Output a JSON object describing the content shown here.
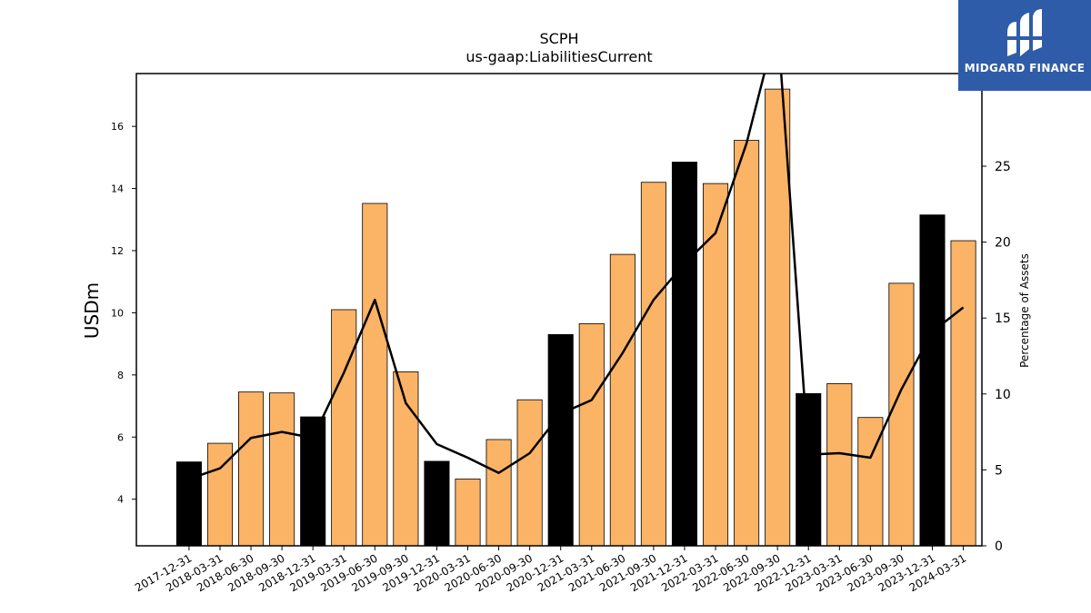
{
  "chart_data": {
    "type": "bar+line",
    "title": "SCPH",
    "subtitle": "us-gaap:LiabilitiesCurrent",
    "ylabel": "USDm",
    "y2label": "Percentage of Assets",
    "ylim": [
      2.5,
      17.7
    ],
    "y2lim": [
      0,
      31.1
    ],
    "yticks": [
      4,
      6,
      8,
      10,
      12,
      14,
      16
    ],
    "y2ticks": [
      0,
      5,
      10,
      15,
      20,
      25
    ],
    "categories": [
      "2017-12-31",
      "2018-03-31",
      "2018-06-30",
      "2018-09-30",
      "2018-12-31",
      "2019-03-31",
      "2019-06-30",
      "2019-09-30",
      "2019-12-31",
      "2020-03-31",
      "2020-06-30",
      "2020-09-30",
      "2020-12-31",
      "2021-03-31",
      "2021-06-30",
      "2021-09-30",
      "2021-12-31",
      "2022-03-31",
      "2022-06-30",
      "2022-09-30",
      "2022-12-31",
      "2023-03-31",
      "2023-06-30",
      "2023-09-30",
      "2023-12-31",
      "2024-03-31"
    ],
    "bars": [
      5.2,
      5.8,
      7.45,
      7.42,
      6.65,
      10.1,
      13.52,
      8.1,
      5.22,
      4.65,
      5.92,
      7.2,
      9.3,
      9.65,
      11.88,
      14.2,
      14.85,
      14.16,
      15.55,
      17.2,
      7.4,
      7.72,
      6.63,
      10.95,
      13.15,
      12.32
    ],
    "bar_highlight": [
      true,
      false,
      false,
      false,
      true,
      false,
      false,
      false,
      true,
      false,
      false,
      false,
      true,
      false,
      false,
      false,
      true,
      false,
      false,
      false,
      true,
      false,
      false,
      false,
      true,
      false
    ],
    "line_percentage": [
      4.4,
      5.1,
      7.1,
      7.5,
      7.1,
      11.4,
      16.2,
      9.4,
      6.7,
      5.8,
      4.8,
      6.1,
      8.7,
      9.6,
      12.7,
      16.2,
      18.6,
      20.6,
      26.5,
      34.5,
      6.0,
      6.1,
      5.8,
      10.3,
      14.1,
      15.7
    ],
    "colors": {
      "bar": "#fbb366",
      "bar_highlight": "#000000",
      "line": "#000000",
      "bar_edge": "#000000"
    }
  },
  "logo": {
    "text": "MIDGARD FINANCE",
    "background": "#2f5ca8"
  }
}
